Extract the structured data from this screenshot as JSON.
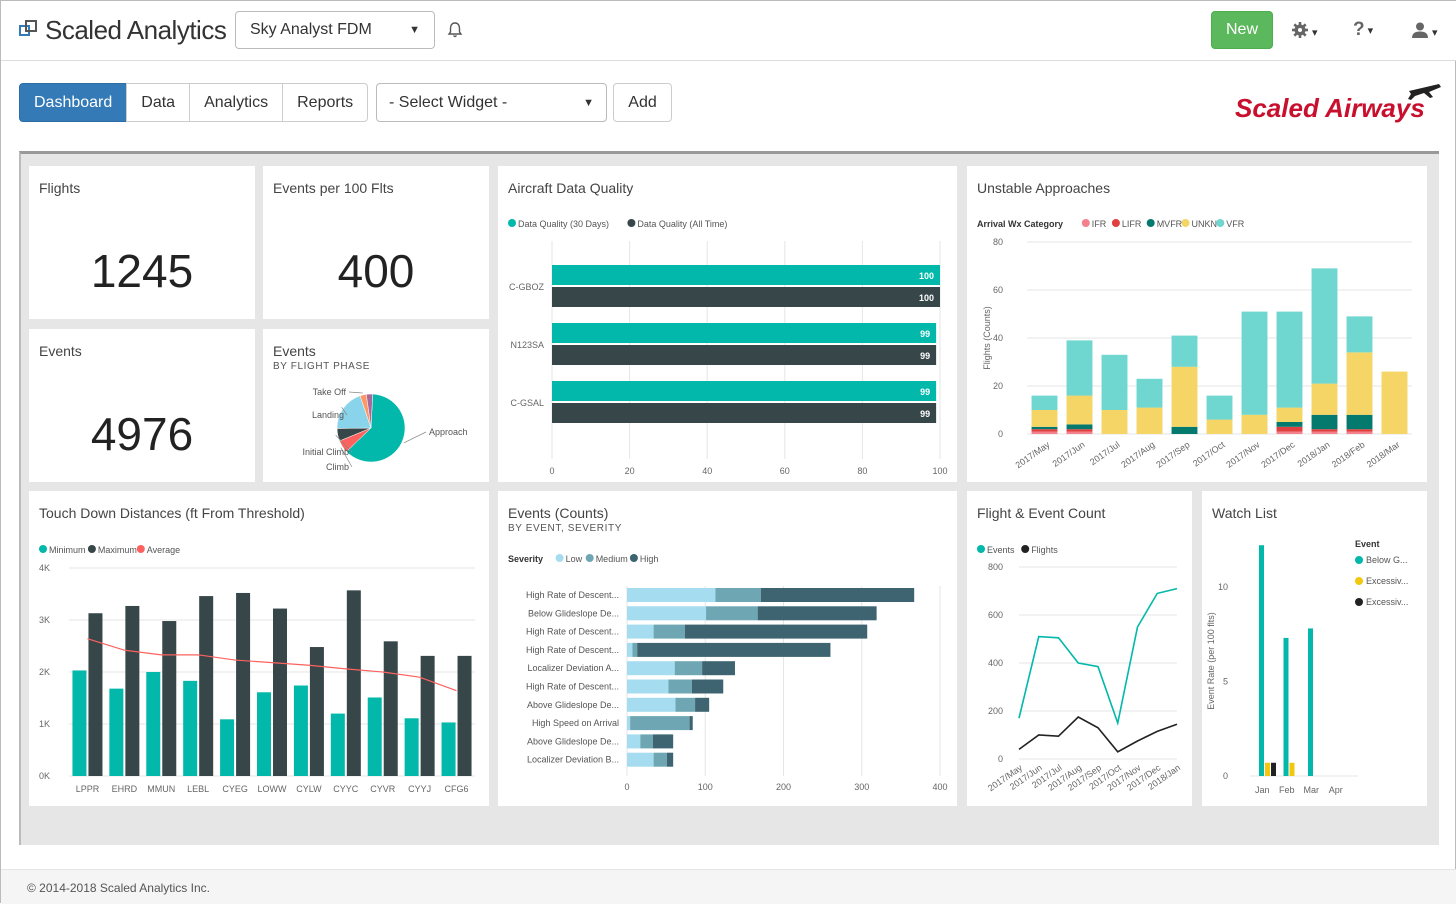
{
  "header": {
    "brand": "Scaled Analytics",
    "project_select": "Sky Analyst FDM",
    "new_label": "New",
    "settings_icon": "gear-icon",
    "help_label": "?",
    "user_icon": "user-icon",
    "notification_icon": "bell-icon"
  },
  "nav": {
    "tabs": [
      {
        "label": "Dashboard",
        "active": true
      },
      {
        "label": "Data",
        "active": false
      },
      {
        "label": "Analytics",
        "active": false
      },
      {
        "label": "Reports",
        "active": false
      }
    ],
    "widget_select": "- Select Widget -",
    "add_label": "Add"
  },
  "logo": {
    "text": "Scaled Airways",
    "color": "#c8102e"
  },
  "colors": {
    "teal": "#01b8aa",
    "dark": "#374649",
    "red": "#fd625e",
    "yellow": "#f2c80f",
    "light_teal": "#6fd6d0",
    "primary": "#337ab7",
    "success": "#5cb85c"
  },
  "kpis": {
    "flights": {
      "title": "Flights",
      "value": "1245"
    },
    "events_per_100": {
      "title": "Events per 100 Flts",
      "value": "400"
    },
    "events": {
      "title": "Events",
      "value": "4976"
    }
  },
  "chart_data": [
    {
      "id": "events_by_phase",
      "type": "pie",
      "title": "Events",
      "subtitle": "BY FLIGHT PHASE",
      "slices": [
        {
          "label": "Approach",
          "value": 62,
          "color": "#01b8aa"
        },
        {
          "label": "Climb",
          "value": 6,
          "color": "#fd625e"
        },
        {
          "label": "Initial Climb",
          "value": 6,
          "color": "#374649"
        },
        {
          "label": "Landing",
          "value": 20,
          "color": "#8ad4eb"
        },
        {
          "label": "Take Off",
          "value": 3,
          "color": "#fe9666"
        },
        {
          "label": "",
          "value": 3,
          "color": "#a66999"
        }
      ]
    },
    {
      "id": "aircraft_data_quality",
      "type": "bar",
      "orientation": "horizontal",
      "title": "Aircraft Data Quality",
      "categories": [
        "C-GBOZ",
        "N123SA",
        "C-GSAL"
      ],
      "series": [
        {
          "name": "Data Quality (30 Days)",
          "values": [
            100,
            99,
            99
          ],
          "color": "#01b8aa"
        },
        {
          "name": "Data Quality (All Time)",
          "values": [
            100,
            99,
            99
          ],
          "color": "#374649"
        }
      ],
      "xlim": [
        0,
        100
      ],
      "ticks": [
        "0",
        "20",
        "40",
        "60",
        "80",
        "100"
      ]
    },
    {
      "id": "unstable_approaches",
      "type": "bar",
      "stacked": true,
      "title": "Unstable Approaches",
      "legend_title": "Arrival Wx Category",
      "ylabel": "Flights (Counts)",
      "ylim": [
        0,
        80
      ],
      "yticks": [
        "0",
        "20",
        "40",
        "60",
        "80"
      ],
      "categories": [
        "2017/May",
        "2017/Jun",
        "2017/Jul",
        "2017/Aug",
        "2017/Sep",
        "2017/Oct",
        "2017/Nov",
        "2017/Dec",
        "2018/Jan",
        "2018/Feb",
        "2018/Mar"
      ],
      "series": [
        {
          "name": "IFR",
          "color": "#f4808c",
          "values": [
            1,
            1,
            0,
            0,
            0,
            0,
            0,
            1,
            1,
            1,
            0
          ]
        },
        {
          "name": "LIFR",
          "color": "#e0403f",
          "values": [
            1,
            1,
            0,
            0,
            0,
            0,
            0,
            2,
            1,
            1,
            0
          ]
        },
        {
          "name": "MVFR",
          "color": "#047a6f",
          "values": [
            1,
            2,
            0,
            0,
            3,
            0,
            0,
            2,
            6,
            6,
            0
          ]
        },
        {
          "name": "UNKN",
          "color": "#f5d565",
          "values": [
            7,
            12,
            10,
            11,
            25,
            6,
            8,
            6,
            13,
            26,
            26
          ]
        },
        {
          "name": "VFR",
          "color": "#6fd6d0",
          "values": [
            6,
            23,
            23,
            12,
            13,
            10,
            43,
            40,
            48,
            15,
            0
          ]
        }
      ]
    },
    {
      "id": "touch_down_distances",
      "type": "bar",
      "title": "Touch Down Distances (ft From Threshold)",
      "categories": [
        "LPPR",
        "EHRD",
        "MMUN",
        "LEBL",
        "CYEG",
        "LOWW",
        "CYLW",
        "CYYC",
        "CYVR",
        "CYYJ",
        "CFG6"
      ],
      "ylim": [
        0,
        4000
      ],
      "yticks": [
        "0K",
        "1K",
        "2K",
        "3K",
        "4K"
      ],
      "series": [
        {
          "name": "Minimum",
          "color": "#01b8aa",
          "values": [
            2030,
            1680,
            2000,
            1830,
            1090,
            1610,
            1740,
            1200,
            1510,
            1110,
            1030
          ]
        },
        {
          "name": "Maximum",
          "color": "#374649",
          "values": [
            3130,
            3270,
            2980,
            3460,
            3520,
            3220,
            2480,
            3570,
            2590,
            2310,
            2310
          ]
        },
        {
          "name": "Average",
          "color": "#fd625e",
          "values": [
            2640,
            2420,
            2330,
            2330,
            2230,
            2180,
            2130,
            2060,
            2000,
            1900,
            1640
          ]
        }
      ]
    },
    {
      "id": "events_counts",
      "type": "bar",
      "orientation": "horizontal",
      "stacked": true,
      "title": "Events (Counts)",
      "subtitle": "BY EVENT, SEVERITY",
      "legend_title": "Severity",
      "xlim": [
        0,
        400
      ],
      "ticks": [
        "0",
        "100",
        "200",
        "300",
        "400"
      ],
      "categories": [
        "High Rate of Descent...",
        "Below Glideslope De...",
        "High Rate of Descent...",
        "High Rate of Descent...",
        "Localizer Deviation A...",
        "High Rate of Descent...",
        "Above Glideslope De...",
        "High Speed on Arrival",
        "Above Glideslope De...",
        "Localizer Deviation B..."
      ],
      "series": [
        {
          "name": "Low",
          "color": "#a6dcef",
          "values": [
            113,
            101,
            34,
            7,
            61,
            53,
            62,
            4,
            17,
            34
          ]
        },
        {
          "name": "Medium",
          "color": "#6ea7b3",
          "values": [
            58,
            66,
            40,
            6,
            35,
            30,
            25,
            76,
            16,
            17
          ]
        },
        {
          "name": "High",
          "color": "#3d6470",
          "values": [
            196,
            152,
            233,
            247,
            42,
            40,
            18,
            4,
            26,
            8
          ]
        }
      ]
    },
    {
      "id": "flight_event_count",
      "type": "line",
      "title": "Flight & Event Count",
      "ylim": [
        0,
        800
      ],
      "yticks": [
        "0",
        "200",
        "400",
        "600",
        "800"
      ],
      "categories": [
        "2017/May",
        "2017/Jun",
        "2017/Jul",
        "2017/Aug",
        "2017/Sep",
        "2017/Oct",
        "2017/Nov",
        "2017/Dec",
        "2018/Jan"
      ],
      "series": [
        {
          "name": "Events",
          "color": "#01b8aa",
          "values": [
            170,
            510,
            505,
            400,
            385,
            150,
            550,
            690,
            710
          ]
        },
        {
          "name": "Flights",
          "color": "#222222",
          "values": [
            40,
            100,
            95,
            175,
            130,
            30,
            75,
            115,
            145
          ]
        }
      ]
    },
    {
      "id": "watch_list",
      "type": "bar",
      "title": "Watch List",
      "legend_title": "Event",
      "ylabel": "Event Rate (per 100 flts)",
      "ylim": [
        0,
        12
      ],
      "yticks": [
        "0",
        "5",
        "10"
      ],
      "categories": [
        "Jan",
        "Feb",
        "Mar",
        "Apr"
      ],
      "series": [
        {
          "name": "Below G...",
          "color": "#01b8aa",
          "values": [
            12.2,
            7.3,
            7.8,
            0
          ]
        },
        {
          "name": "Excessiv...",
          "color": "#f2c80f",
          "values": [
            0.7,
            0.7,
            0,
            0
          ]
        },
        {
          "name": "Excessiv...",
          "color": "#222222",
          "values": [
            0.7,
            0,
            0,
            0
          ]
        }
      ]
    }
  ],
  "footer": {
    "copyright": "© 2014-2018 Scaled Analytics Inc."
  }
}
